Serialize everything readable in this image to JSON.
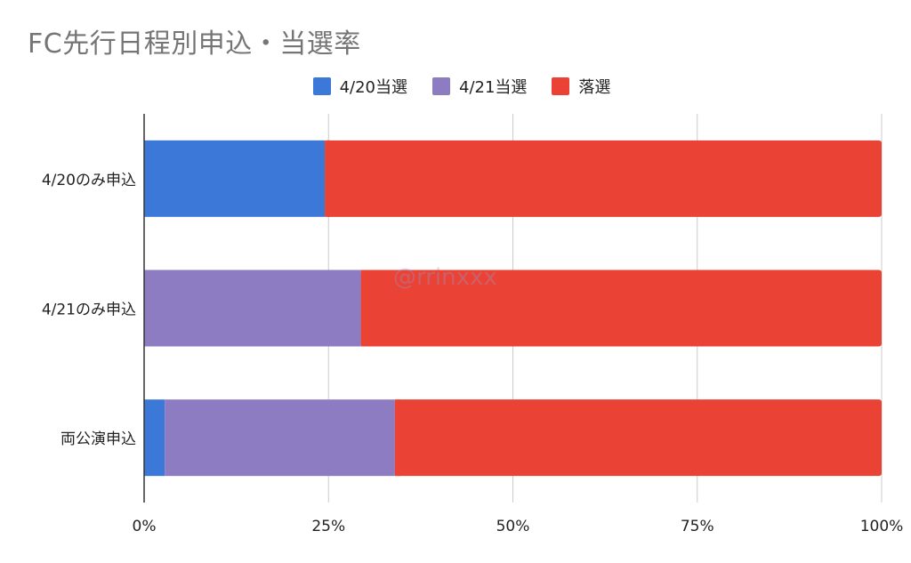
{
  "chart_data": {
    "type": "bar",
    "orientation": "horizontal",
    "stacked": true,
    "percent_stacked": true,
    "title": "FC先行日程別申込・当選率",
    "categories": [
      "4/20のみ申込",
      "4/21のみ申込",
      "両公演申込"
    ],
    "series": [
      {
        "name": "4/20当選",
        "color": "#3c78d8",
        "values": [
          24.5,
          0,
          2.8
        ]
      },
      {
        "name": "4/21当選",
        "color": "#8e7cc3",
        "values": [
          0,
          29.4,
          31.2
        ]
      },
      {
        "name": "落選",
        "color": "#ea4335",
        "values": [
          75.5,
          70.6,
          66.0
        ]
      }
    ],
    "xlim": [
      0,
      100
    ],
    "x_ticks": [
      "0%",
      "25%",
      "50%",
      "75%",
      "100%"
    ],
    "x_tick_values": [
      0,
      25,
      50,
      75,
      100
    ],
    "grid": true,
    "legend_position": "top"
  },
  "watermark": "@rrinxxx"
}
